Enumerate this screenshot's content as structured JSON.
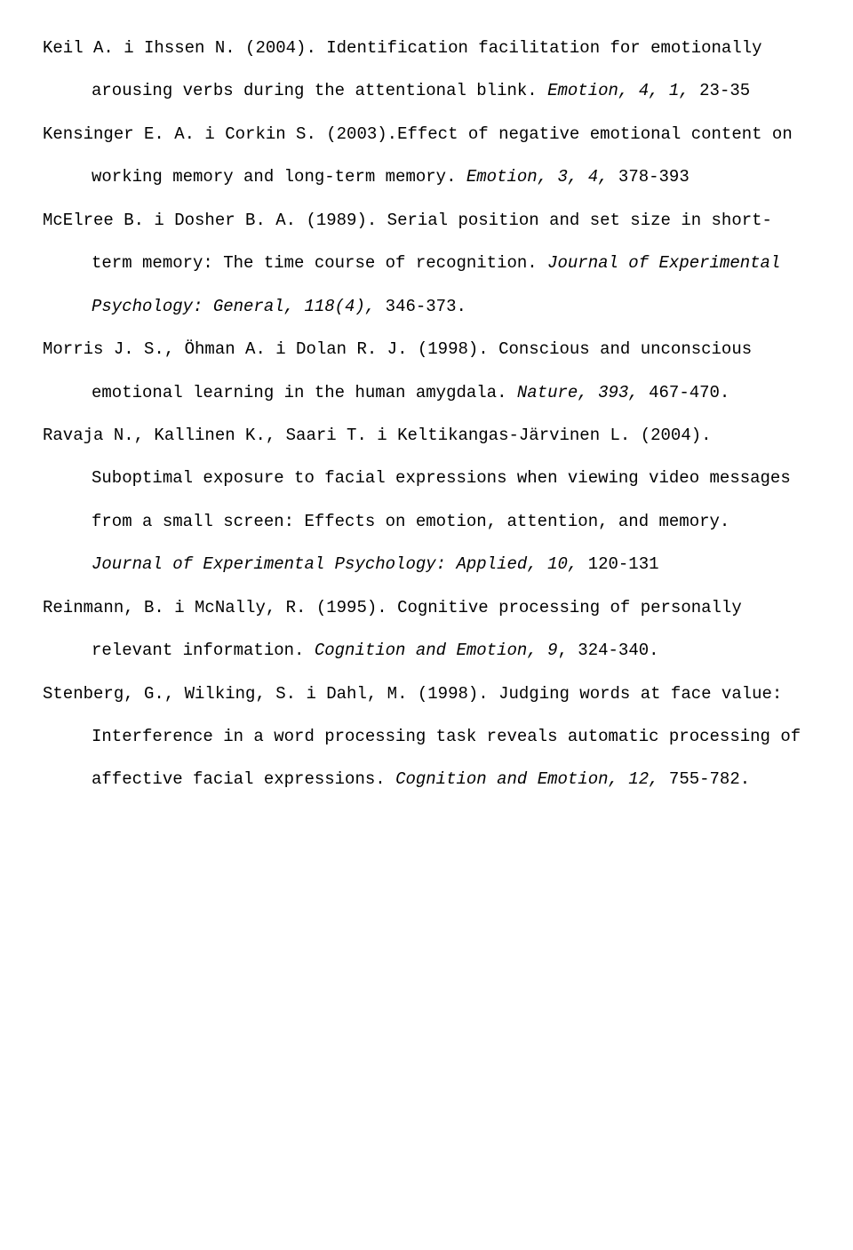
{
  "references": [
    {
      "pre": "Keil A. i Ihssen N. (2004). Identification facilitation for emotionally arousing verbs during the attentional blink. ",
      "ital": "Emotion, 4, 1,",
      "post": " 23-35"
    },
    {
      "pre": "Kensinger E. A. i Corkin S. (2003).Effect of negative emotional content on working memory and long-term memory. ",
      "ital": "Emotion, 3, 4,",
      "post": " 378-393"
    },
    {
      "pre": "McElree B. i Dosher B. A. (1989). Serial position and set size in short-term memory: The time course of recognition. ",
      "ital": "Journal of Experimental Psychology: General, 118(4),",
      "post": " 346-373."
    },
    {
      "pre": "Morris J. S., Öhman A. i Dolan R. J. (1998). Conscious and unconscious emotional learning in the human amygdala. ",
      "ital": "Nature, 393,",
      "post": " 467-470."
    },
    {
      "pre": "Ravaja N., Kallinen K., Saari T. i Keltikangas-Järvinen L. (2004). Suboptimal exposure to facial expressions when viewing video messages from a small screen: Effects on emotion, attention, and memory. ",
      "ital": "Journal of Experimental Psychology: Applied, 10,",
      "post": " 120-131"
    },
    {
      "pre": "Reinmann, B. i McNally, R. (1995). Cognitive processing of personally relevant information. ",
      "ital": "Cognition and Emotion, 9",
      "post": ", 324-340."
    },
    {
      "pre": "Stenberg, G., Wilking, S. i Dahl, M. (1998). Judging words at face value: Interference in a word processing task reveals automatic processing of affective facial expressions. ",
      "ital": "Cognition and Emotion, 12,",
      "post": " 755-782."
    }
  ]
}
